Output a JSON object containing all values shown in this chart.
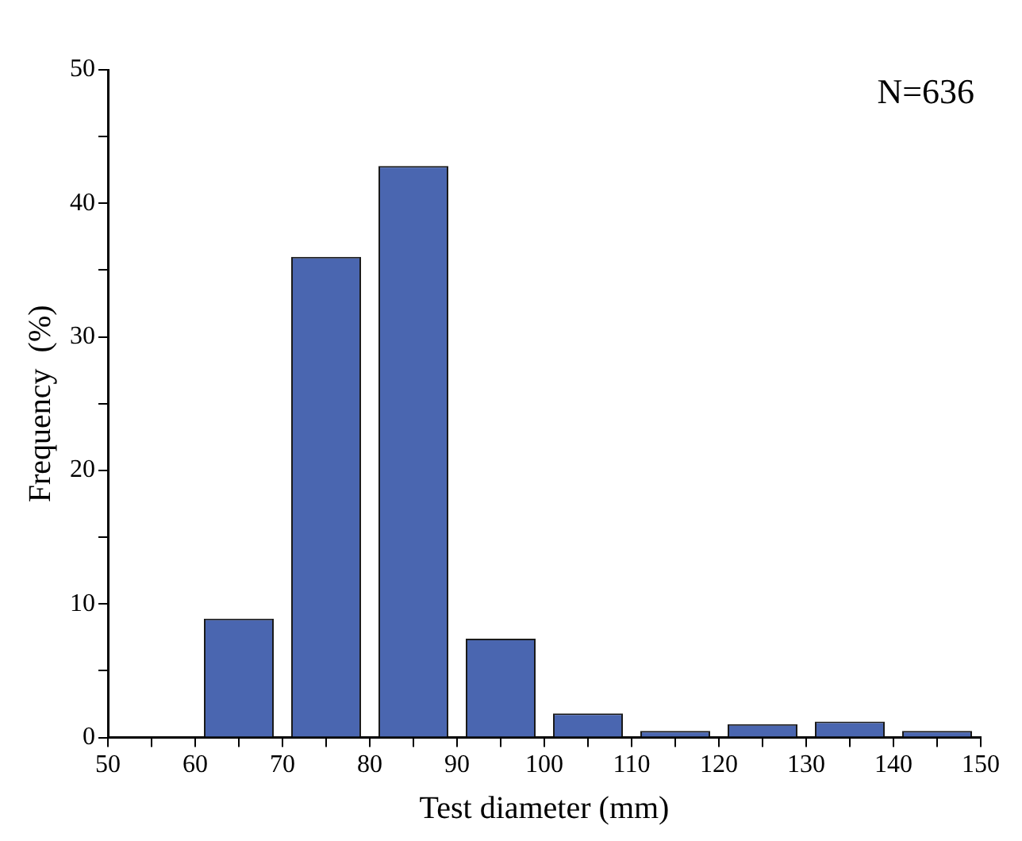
{
  "chart_data": {
    "type": "histogram",
    "xlabel": "Test diameter (mm)",
    "ylabel": "Frequency  (%)",
    "annotations": [
      "N=636"
    ],
    "bins": [
      50,
      60,
      70,
      80,
      90,
      100,
      110,
      120,
      130,
      140,
      150
    ],
    "values": [
      0,
      8.9,
      36,
      42.8,
      7.4,
      1.8,
      0.5,
      1.0,
      1.2,
      0.5
    ],
    "color": "#4a66b0",
    "xlim": [
      50,
      150
    ],
    "xticks": [
      50,
      {
        "value": 55,
        "label": null
      },
      60,
      {
        "value": 65,
        "label": null
      },
      70,
      {
        "value": 75,
        "label": null
      },
      80,
      {
        "value": 85,
        "label": null
      },
      90,
      {
        "value": 95,
        "label": null
      },
      100,
      {
        "value": 105,
        "label": null
      },
      110,
      {
        "value": 115,
        "label": null
      },
      120,
      {
        "value": 125,
        "label": null
      },
      130,
      {
        "value": 135,
        "label": null
      },
      140,
      {
        "value": 145,
        "label": null
      },
      150
    ],
    "ylim": [
      0,
      50
    ],
    "yticks": [
      0,
      {
        "value": 5,
        "label": null
      },
      10,
      {
        "value": 15,
        "label": null
      },
      20,
      {
        "value": 25,
        "label": null
      },
      30,
      {
        "value": 35,
        "label": null
      },
      40,
      {
        "value": 45,
        "label": null
      },
      50
    ],
    "grid": false,
    "legend": false
  }
}
